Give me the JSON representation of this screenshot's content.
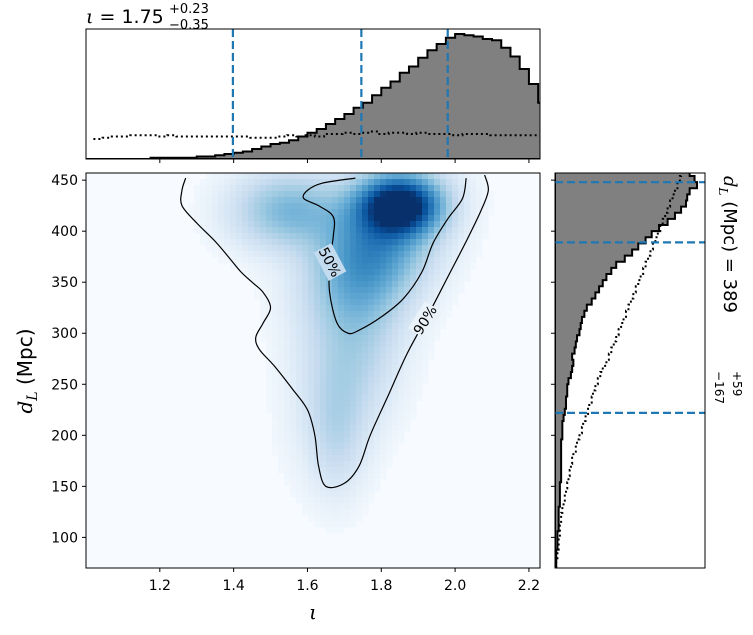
{
  "chart_data": [
    {
      "name": "iota-marginal",
      "type": "histogram",
      "title_param": "ι",
      "title_value": "1.75",
      "title_plus": "+0.23",
      "title_minus": "−0.35",
      "xlim": [
        1.0,
        2.23
      ],
      "bin_width": 0.025,
      "bin_start": 1.0,
      "posterior_counts": [
        0,
        0,
        0,
        0,
        0,
        0,
        0,
        1,
        1,
        1,
        1,
        1,
        2,
        2,
        3,
        4,
        5,
        6,
        8,
        10,
        12,
        13,
        15,
        18,
        21,
        24,
        28,
        32,
        36,
        41,
        45,
        51,
        57,
        62,
        69,
        74,
        81,
        87,
        92,
        97,
        100,
        99,
        98,
        96,
        95,
        89,
        82,
        72,
        60,
        45,
        30,
        18,
        9,
        5,
        3,
        2,
        1,
        1,
        1,
        1,
        1,
        1,
        1,
        1,
        0,
        0,
        0,
        0,
        0,
        0
      ],
      "prior_counts": [
        16,
        17,
        18,
        18,
        19,
        19,
        19,
        18,
        19,
        18,
        18,
        18,
        18,
        18,
        18,
        18,
        18,
        17,
        17,
        17,
        18,
        19,
        18,
        19,
        18,
        20,
        20,
        21,
        20,
        21,
        22,
        20,
        21,
        21,
        20,
        21,
        20,
        20,
        20,
        19,
        20,
        20,
        20,
        19,
        19,
        19,
        19,
        19,
        19,
        19,
        18,
        18,
        17,
        17,
        17,
        16,
        16,
        16,
        15,
        15,
        15,
        15,
        15,
        15,
        15,
        15,
        15
      ],
      "prior_start": 1.02,
      "quantile_lines": [
        1.398,
        1.746,
        1.98
      ],
      "line_color": "#1f77b4",
      "fill_color": "#808080"
    },
    {
      "name": "joint-density",
      "type": "heatmap",
      "xlabel": "ι",
      "ylabel": "d_L (Mpc)",
      "xlim": [
        1.0,
        2.23
      ],
      "ylim": [
        70,
        457
      ],
      "xticks": [
        "1.2",
        "1.4",
        "1.6",
        "1.8",
        "2.0",
        "2.2"
      ],
      "yticks": [
        "100",
        "150",
        "200",
        "250",
        "300",
        "350",
        "400",
        "450"
      ],
      "colormap": "Blues",
      "peak": {
        "iota": 1.85,
        "d_L": 425
      },
      "contour_labels": [
        "50%",
        "90%"
      ],
      "contour_50": [
        [
          1.73,
          452
        ],
        [
          1.64,
          447
        ],
        [
          1.6,
          440
        ],
        [
          1.59,
          432
        ],
        [
          1.63,
          425
        ],
        [
          1.67,
          414
        ],
        [
          1.67,
          395
        ],
        [
          1.66,
          370
        ],
        [
          1.66,
          340
        ],
        [
          1.68,
          310
        ],
        [
          1.71,
          300
        ],
        [
          1.74,
          303
        ],
        [
          1.8,
          316
        ],
        [
          1.86,
          334
        ],
        [
          1.91,
          360
        ],
        [
          1.94,
          388
        ],
        [
          1.98,
          412
        ],
        [
          2.02,
          432
        ],
        [
          2.03,
          452
        ]
      ],
      "contour_90": [
        [
          1.27,
          452
        ],
        [
          1.26,
          440
        ],
        [
          1.26,
          425
        ],
        [
          1.3,
          408
        ],
        [
          1.35,
          390
        ],
        [
          1.39,
          373
        ],
        [
          1.42,
          360
        ],
        [
          1.45,
          350
        ],
        [
          1.48,
          340
        ],
        [
          1.5,
          325
        ],
        [
          1.48,
          310
        ],
        [
          1.46,
          296
        ],
        [
          1.47,
          284
        ],
        [
          1.51,
          268
        ],
        [
          1.56,
          245
        ],
        [
          1.6,
          225
        ],
        [
          1.62,
          200
        ],
        [
          1.63,
          170
        ],
        [
          1.65,
          150
        ],
        [
          1.7,
          153
        ],
        [
          1.74,
          170
        ],
        [
          1.77,
          200
        ],
        [
          1.82,
          240
        ],
        [
          1.87,
          280
        ],
        [
          1.93,
          320
        ],
        [
          1.98,
          355
        ],
        [
          2.03,
          390
        ],
        [
          2.07,
          420
        ],
        [
          2.09,
          440
        ],
        [
          2.08,
          455
        ]
      ]
    },
    {
      "name": "dL-marginal",
      "type": "histogram",
      "orientation": "horizontal",
      "title_param": "d_L (Mpc)",
      "title_value": "389",
      "title_plus": "+59",
      "title_minus": "−167",
      "ylim": [
        70,
        457
      ],
      "bin_width": 6,
      "bin_start": 70,
      "posterior_counts": [
        1,
        1,
        1,
        2,
        2,
        2,
        3,
        3,
        3,
        3,
        4,
        4,
        4,
        4,
        5,
        5,
        5,
        5,
        5,
        5,
        5,
        6,
        6,
        6,
        7,
        8,
        9,
        9,
        10,
        10,
        11,
        13,
        14,
        15,
        14,
        16,
        17,
        18,
        20,
        21,
        22,
        24,
        26,
        30,
        33,
        36,
        39,
        42,
        46,
        50,
        57,
        63,
        68,
        74,
        79,
        85,
        92,
        98,
        103,
        107,
        108,
        110,
        116,
        114,
        110,
        104,
        102
      ],
      "prior_counts": [
        1,
        2,
        2,
        3,
        3,
        4,
        4,
        5,
        5,
        6,
        7,
        8,
        9,
        10,
        11,
        12,
        13,
        14,
        15,
        17,
        18,
        20,
        22,
        23,
        25,
        27,
        28,
        30,
        31,
        33,
        35,
        37,
        39,
        42,
        44,
        46,
        48,
        50,
        52,
        54,
        56,
        58,
        60,
        62,
        64,
        66,
        68,
        70,
        72,
        74,
        76,
        78,
        80,
        82,
        84,
        86,
        88,
        90,
        92,
        94,
        96,
        98,
        100,
        102,
        103,
        104,
        104
      ],
      "quantile_lines": [
        222,
        389,
        448
      ],
      "line_color": "#1f77b4",
      "fill_color": "#808080"
    }
  ]
}
